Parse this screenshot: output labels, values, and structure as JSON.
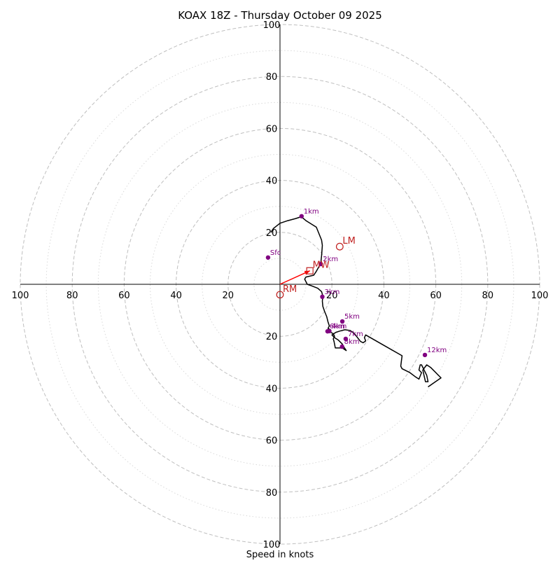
{
  "chart_data": {
    "type": "scatter",
    "title": "KOAX 18Z - Thursday October 09 2025",
    "xlabel": "Speed in knots",
    "ylabel": "",
    "xlim": [
      -100,
      100
    ],
    "ylim": [
      -100,
      100
    ],
    "ring_step_major": 20,
    "ring_step_minor": 10,
    "axis_tick_labels": [
      "100",
      "80",
      "60",
      "40",
      "20",
      "20",
      "40",
      "60",
      "80",
      "100"
    ],
    "hodograph_trace": [
      [
        -3.5,
        20
      ],
      [
        -2.5,
        21.5
      ],
      [
        0,
        23.5
      ],
      [
        3,
        24.5
      ],
      [
        6,
        25.3
      ],
      [
        8.2,
        26
      ],
      [
        10,
        24.5
      ],
      [
        14,
        22
      ],
      [
        16,
        17
      ],
      [
        16.3,
        15
      ],
      [
        16,
        11
      ],
      [
        15.7,
        8
      ],
      [
        14,
        5
      ],
      [
        13,
        3.5
      ],
      [
        10,
        2.8
      ],
      [
        9.5,
        2
      ],
      [
        10.5,
        0
      ],
      [
        12,
        -0.5
      ],
      [
        14.5,
        -1.5
      ],
      [
        16,
        -2.8
      ],
      [
        16.5,
        -4.5
      ],
      [
        16.3,
        -6.5
      ],
      [
        16.5,
        -8.5
      ],
      [
        17.2,
        -10.5
      ],
      [
        18,
        -12.5
      ],
      [
        18.5,
        -14.5
      ],
      [
        19,
        -16
      ],
      [
        18.5,
        -17
      ],
      [
        19.5,
        -17.5
      ],
      [
        18,
        -17.8
      ],
      [
        19.5,
        -18.5
      ],
      [
        20.5,
        -19
      ],
      [
        21,
        -20
      ],
      [
        20.5,
        -21
      ],
      [
        20.8,
        -22
      ],
      [
        21.3,
        -24.5
      ],
      [
        24,
        -24.5
      ],
      [
        25.5,
        -25.5
      ],
      [
        24.5,
        -24
      ],
      [
        24,
        -23
      ],
      [
        22.5,
        -21.5
      ],
      [
        21,
        -20.5
      ],
      [
        20,
        -19.5
      ],
      [
        21.5,
        -18.5
      ],
      [
        23,
        -18
      ],
      [
        25,
        -17.5
      ],
      [
        27,
        -17.8
      ],
      [
        28.5,
        -18.8
      ],
      [
        31,
        -22
      ],
      [
        32,
        -22.5
      ],
      [
        33,
        -21.8
      ],
      [
        32.5,
        -20.5
      ],
      [
        33,
        -19.5
      ],
      [
        40,
        -23.5
      ],
      [
        47,
        -27.5
      ],
      [
        46.5,
        -31.5
      ],
      [
        47,
        -32.5
      ],
      [
        50,
        -34
      ],
      [
        52,
        -35.5
      ],
      [
        53.5,
        -36.5
      ],
      [
        54.5,
        -34
      ],
      [
        53.5,
        -33
      ],
      [
        54,
        -31
      ],
      [
        54.5,
        -31
      ],
      [
        56.5,
        -35
      ],
      [
        57,
        -37.5
      ],
      [
        56,
        -37.5
      ],
      [
        55,
        -33
      ],
      [
        56.5,
        -31
      ],
      [
        58,
        -32
      ],
      [
        62,
        -36
      ],
      [
        57,
        -39.5
      ]
    ],
    "height_markers": [
      {
        "label": "Sfc",
        "u": -4.6,
        "v": 10.3
      },
      {
        "label": "1km",
        "u": 8.3,
        "v": 26.2
      },
      {
        "label": "2km",
        "u": 15.7,
        "v": 7.8
      },
      {
        "label": "3km",
        "u": 16.3,
        "v": -4.8
      },
      {
        "label": "4km",
        "u": 19,
        "v": -18
      },
      {
        "label": "5km",
        "u": 24,
        "v": -14.3
      },
      {
        "label": "6km",
        "u": 18.3,
        "v": -18.1
      },
      {
        "label": "7km",
        "u": 25.3,
        "v": -21
      },
      {
        "label": "8km",
        "u": 23.9,
        "v": -24
      },
      {
        "label": "12km",
        "u": 55.8,
        "v": -27.2
      }
    ],
    "storm_motion": [
      {
        "label": "LM",
        "u": 23,
        "v": 14.5,
        "shape": "circle"
      },
      {
        "label": "MW",
        "u": 11.5,
        "v": 5.2,
        "shape": "square"
      },
      {
        "label": "RM",
        "u": 0,
        "v": -4,
        "shape": "circle"
      }
    ],
    "motion_vector": {
      "u": 11.5,
      "v": 5.2
    },
    "colors": {
      "trace": "#000000",
      "markers": "#800080",
      "storm_motion": "#c0201f",
      "vector": "#ff0000",
      "grid": "#bfbfbf",
      "axes": "#000000"
    }
  }
}
